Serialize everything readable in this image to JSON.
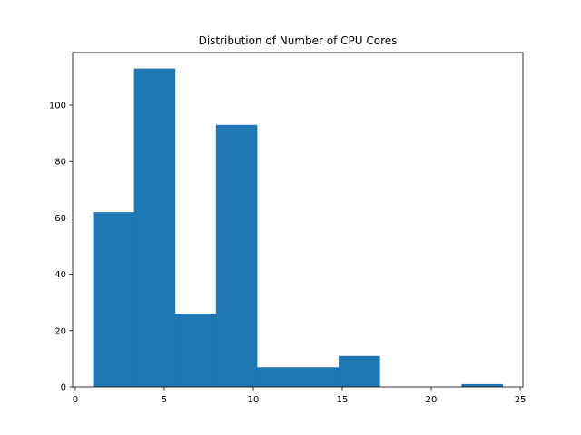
{
  "chart_data": {
    "type": "bar",
    "title": "Distribution of Number of CPU Cores",
    "xlabel": "",
    "ylabel": "",
    "bin_edges": [
      1.0,
      3.3,
      5.6,
      7.9,
      10.2,
      12.5,
      14.8,
      17.1,
      19.4,
      21.7,
      24.0
    ],
    "values": [
      62,
      113,
      26,
      93,
      7,
      7,
      11,
      0,
      0,
      1
    ],
    "xlim": [
      -0.15,
      25.15
    ],
    "ylim": [
      0,
      118.65
    ],
    "xticks": [
      0,
      5,
      10,
      15,
      20,
      25
    ],
    "yticks": [
      0,
      20,
      40,
      60,
      80,
      100
    ],
    "bar_color": "#1f77b4",
    "grid": false
  }
}
